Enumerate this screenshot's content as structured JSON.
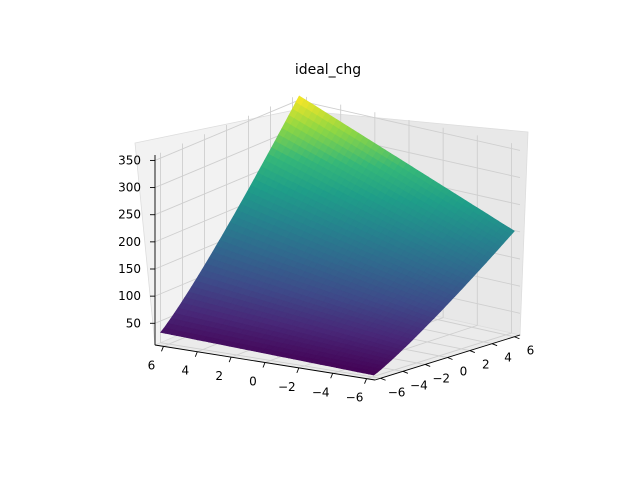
{
  "chart_data": {
    "type": "surface",
    "title": "ideal_chg",
    "colormap": "viridis",
    "xlabel": "",
    "ylabel": "",
    "zlabel": "",
    "xlim": [
      -6.5,
      6.5
    ],
    "ylim": [
      -6.5,
      6.5
    ],
    "zlim": [
      10,
      360
    ],
    "x_ticks": [
      "6",
      "4",
      "2",
      "0",
      "−2",
      "−4",
      "−6"
    ],
    "y_ticks": [
      "−6",
      "−4",
      "−2",
      "0",
      "2",
      "4",
      "6"
    ],
    "z_ticks": [
      "50",
      "100",
      "150",
      "200",
      "250",
      "300",
      "350"
    ],
    "surface_samples": [
      {
        "x": 6.3,
        "y": -6.3,
        "z": 18
      },
      {
        "x": 6.3,
        "y": 6.3,
        "z": 355
      },
      {
        "x": -6.3,
        "y": -6.3,
        "z": 25
      },
      {
        "x": -6.3,
        "y": 6.3,
        "z": 190
      }
    ],
    "grid": true,
    "color_range": [
      "#440154",
      "#fde725"
    ]
  }
}
